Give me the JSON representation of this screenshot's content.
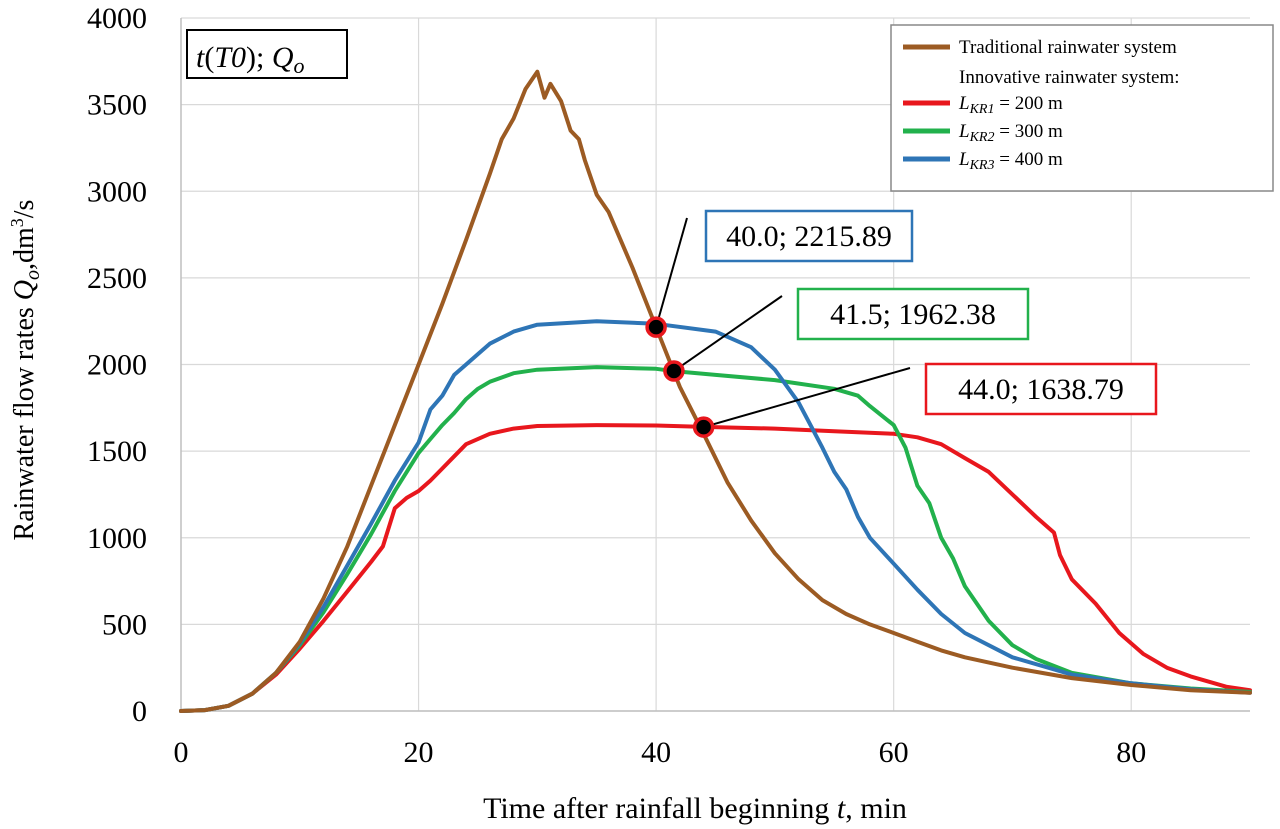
{
  "chart_data": {
    "type": "line",
    "xlabel": {
      "text": "Time after rainfall beginning ",
      "var": "t",
      "unit": ", min"
    },
    "ylabel": {
      "text": "Rainwater flow rates ",
      "var": "Q",
      "sub": "o",
      "unit": ",dm",
      "sup": "3",
      "tail": "/s"
    },
    "xlim": [
      0,
      90
    ],
    "ylim": [
      0,
      4000
    ],
    "xticks": [
      0,
      20,
      40,
      60,
      80
    ],
    "yticks": [
      0,
      500,
      1000,
      1500,
      2000,
      2500,
      3000,
      3500,
      4000
    ],
    "grid": true,
    "label_box": {
      "prefix": "t",
      "paren_open": "(",
      "T0": "T0",
      "paren_close": ");",
      "Q": "Q",
      "sub": "o"
    },
    "legend": {
      "position": "top-right",
      "header": "Innovative rainwater system:",
      "unit": "= ",
      "entries": [
        {
          "id": "trad",
          "label": "Traditional rainwater system"
        },
        {
          "id": "kr1",
          "L": "L",
          "sub": "KR1",
          "value": "200 m"
        },
        {
          "id": "kr2",
          "L": "L",
          "sub": "KR2",
          "value": "300 m"
        },
        {
          "id": "kr3",
          "L": "L",
          "sub": "KR3",
          "value": "400 m"
        }
      ]
    },
    "series": [
      {
        "id": "trad",
        "name": "Traditional rainwater system",
        "color": "#9C5B23",
        "points": [
          [
            0,
            0
          ],
          [
            2,
            5
          ],
          [
            4,
            30
          ],
          [
            6,
            100
          ],
          [
            8,
            220
          ],
          [
            10,
            400
          ],
          [
            12,
            650
          ],
          [
            14,
            950
          ],
          [
            16,
            1300
          ],
          [
            18,
            1650
          ],
          [
            20,
            2000
          ],
          [
            22,
            2350
          ],
          [
            24,
            2720
          ],
          [
            26,
            3100
          ],
          [
            27,
            3300
          ],
          [
            28,
            3420
          ],
          [
            29,
            3590
          ],
          [
            30,
            3690
          ],
          [
            30.6,
            3540
          ],
          [
            31.1,
            3620
          ],
          [
            32,
            3520
          ],
          [
            32.8,
            3350
          ],
          [
            33.5,
            3300
          ],
          [
            34,
            3180
          ],
          [
            35,
            2980
          ],
          [
            36,
            2880
          ],
          [
            38,
            2560
          ],
          [
            40,
            2215
          ],
          [
            42,
            1870
          ],
          [
            44,
            1600
          ],
          [
            46,
            1320
          ],
          [
            48,
            1100
          ],
          [
            50,
            910
          ],
          [
            52,
            760
          ],
          [
            54,
            640
          ],
          [
            56,
            560
          ],
          [
            58,
            500
          ],
          [
            60,
            450
          ],
          [
            62,
            400
          ],
          [
            64,
            350
          ],
          [
            66,
            310
          ],
          [
            70,
            250
          ],
          [
            75,
            190
          ],
          [
            80,
            150
          ],
          [
            85,
            120
          ],
          [
            90,
            105
          ]
        ]
      },
      {
        "id": "kr1",
        "name": "L_KR1 = 200 m",
        "color": "#E8171D",
        "points": [
          [
            0,
            0
          ],
          [
            2,
            5
          ],
          [
            4,
            30
          ],
          [
            6,
            100
          ],
          [
            8,
            210
          ],
          [
            10,
            360
          ],
          [
            12,
            520
          ],
          [
            14,
            690
          ],
          [
            16,
            860
          ],
          [
            17,
            950
          ],
          [
            18,
            1170
          ],
          [
            19,
            1230
          ],
          [
            20,
            1270
          ],
          [
            21,
            1330
          ],
          [
            22,
            1400
          ],
          [
            23,
            1470
          ],
          [
            24,
            1540
          ],
          [
            26,
            1600
          ],
          [
            28,
            1630
          ],
          [
            30,
            1645
          ],
          [
            35,
            1650
          ],
          [
            40,
            1648
          ],
          [
            44,
            1640
          ],
          [
            50,
            1630
          ],
          [
            55,
            1615
          ],
          [
            60,
            1600
          ],
          [
            62,
            1580
          ],
          [
            64,
            1540
          ],
          [
            66,
            1460
          ],
          [
            68,
            1380
          ],
          [
            70,
            1250
          ],
          [
            72,
            1120
          ],
          [
            73.5,
            1030
          ],
          [
            74,
            900
          ],
          [
            75,
            760
          ],
          [
            77,
            620
          ],
          [
            79,
            450
          ],
          [
            81,
            330
          ],
          [
            83,
            250
          ],
          [
            85,
            200
          ],
          [
            88,
            140
          ],
          [
            90,
            120
          ]
        ]
      },
      {
        "id": "kr2",
        "name": "L_KR2 = 300 m",
        "color": "#22B14C",
        "points": [
          [
            0,
            0
          ],
          [
            2,
            5
          ],
          [
            4,
            30
          ],
          [
            6,
            100
          ],
          [
            8,
            220
          ],
          [
            10,
            380
          ],
          [
            12,
            570
          ],
          [
            14,
            790
          ],
          [
            16,
            1020
          ],
          [
            18,
            1270
          ],
          [
            20,
            1490
          ],
          [
            21,
            1570
          ],
          [
            22,
            1650
          ],
          [
            23,
            1720
          ],
          [
            24,
            1800
          ],
          [
            25,
            1860
          ],
          [
            26,
            1900
          ],
          [
            28,
            1950
          ],
          [
            30,
            1970
          ],
          [
            35,
            1985
          ],
          [
            40,
            1975
          ],
          [
            41.5,
            1962
          ],
          [
            45,
            1940
          ],
          [
            50,
            1910
          ],
          [
            55,
            1860
          ],
          [
            57,
            1820
          ],
          [
            58,
            1760
          ],
          [
            60,
            1650
          ],
          [
            61,
            1520
          ],
          [
            62,
            1300
          ],
          [
            63,
            1200
          ],
          [
            64,
            1000
          ],
          [
            65,
            880
          ],
          [
            66,
            720
          ],
          [
            68,
            520
          ],
          [
            70,
            380
          ],
          [
            72,
            300
          ],
          [
            75,
            220
          ],
          [
            80,
            160
          ],
          [
            85,
            130
          ],
          [
            90,
            110
          ]
        ]
      },
      {
        "id": "kr3",
        "name": "L_KR3 = 400 m",
        "color": "#2E75B6",
        "points": [
          [
            0,
            0
          ],
          [
            2,
            5
          ],
          [
            4,
            30
          ],
          [
            6,
            100
          ],
          [
            8,
            220
          ],
          [
            10,
            390
          ],
          [
            12,
            600
          ],
          [
            14,
            840
          ],
          [
            16,
            1080
          ],
          [
            18,
            1330
          ],
          [
            20,
            1550
          ],
          [
            21,
            1740
          ],
          [
            22,
            1820
          ],
          [
            23,
            1940
          ],
          [
            24,
            2000
          ],
          [
            25,
            2060
          ],
          [
            26,
            2120
          ],
          [
            28,
            2190
          ],
          [
            30,
            2230
          ],
          [
            35,
            2250
          ],
          [
            40,
            2235
          ],
          [
            45,
            2190
          ],
          [
            48,
            2100
          ],
          [
            50,
            1970
          ],
          [
            52,
            1780
          ],
          [
            53,
            1650
          ],
          [
            54,
            1520
          ],
          [
            55,
            1380
          ],
          [
            56,
            1280
          ],
          [
            57,
            1120
          ],
          [
            58,
            1000
          ],
          [
            60,
            850
          ],
          [
            62,
            700
          ],
          [
            64,
            560
          ],
          [
            66,
            450
          ],
          [
            70,
            310
          ],
          [
            75,
            210
          ],
          [
            80,
            160
          ],
          [
            85,
            125
          ],
          [
            90,
            105
          ]
        ]
      }
    ],
    "annotations": [
      {
        "label": "40.0; 2215.89",
        "x": 40.0,
        "y": 2215.89,
        "color": "#2E75B6"
      },
      {
        "label": "41.5; 1962.38",
        "x": 41.5,
        "y": 1962.38,
        "color": "#22B14C"
      },
      {
        "label": "44.0; 1638.79",
        "x": 44.0,
        "y": 1638.79,
        "color": "#E8171D"
      }
    ]
  }
}
